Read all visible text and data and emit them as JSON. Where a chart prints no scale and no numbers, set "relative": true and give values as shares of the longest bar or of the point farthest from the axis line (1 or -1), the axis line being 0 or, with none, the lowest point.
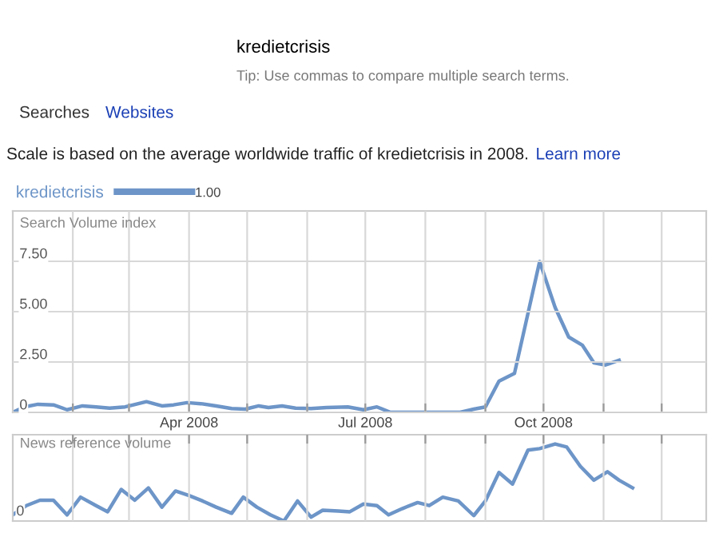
{
  "chart_data": [
    {
      "type": "line",
      "title": "Scale is based on the average worldwide traffic of kredietcrisis in 2008.",
      "ylabel": "Search Volume index",
      "annotations": [
        "kredietcrisis",
        "Tip: Use commas to compare multiple search terms.",
        "Searches",
        "Websites",
        "Learn more",
        "1.00"
      ],
      "x": [
        "2008-01-01",
        "2008-01-07",
        "2008-01-14",
        "2008-01-22",
        "2008-01-29",
        "2008-02-06",
        "2008-02-13",
        "2008-02-20",
        "2008-02-28",
        "2008-03-10",
        "2008-03-18",
        "2008-03-24",
        "2008-03-31",
        "2008-04-07",
        "2008-04-15",
        "2008-04-23",
        "2008-04-30",
        "2008-05-07",
        "2008-05-12",
        "2008-05-19",
        "2008-05-26",
        "2008-06-03",
        "2008-06-11",
        "2008-06-22",
        "2008-06-30",
        "2008-07-07",
        "2008-07-14",
        "2008-07-28",
        "2008-08-19",
        "2008-08-26",
        "2008-09-01",
        "2008-09-08",
        "2008-09-16",
        "2008-09-29",
        "2008-10-07",
        "2008-10-14",
        "2008-10-21",
        "2008-10-27",
        "2008-11-02",
        "2008-11-09"
      ],
      "series": [
        {
          "name": "kredietcrisis",
          "color": "#6d95c8",
          "values": [
            0,
            0.27,
            0.4,
            0.37,
            0.13,
            0.32,
            0.27,
            0.21,
            0.27,
            0.53,
            0.32,
            0.37,
            0.48,
            0.43,
            0.32,
            0.19,
            0.16,
            0.32,
            0.24,
            0.32,
            0.21,
            0.19,
            0.24,
            0.27,
            0.13,
            0.27,
            0,
            0,
            0,
            0.16,
            0.27,
            1.55,
            1.93,
            7.49,
            5.21,
            3.74,
            3.34,
            2.46,
            2.35,
            2.59
          ]
        }
      ],
      "xlim": [
        "2008-01-01",
        "2008-12-24"
      ],
      "xticks": [
        {
          "value": "2008-02-01",
          "label": null
        },
        {
          "value": "2008-03-01",
          "label": null
        },
        {
          "value": "2008-04-01",
          "label": "Apr 2008"
        },
        {
          "value": "2008-05-01",
          "label": null
        },
        {
          "value": "2008-06-01",
          "label": null
        },
        {
          "value": "2008-07-01",
          "label": "Jul 2008"
        },
        {
          "value": "2008-08-01",
          "label": null
        },
        {
          "value": "2008-09-01",
          "label": null
        },
        {
          "value": "2008-10-01",
          "label": "Oct 2008"
        },
        {
          "value": "2008-11-01",
          "label": null
        },
        {
          "value": "2008-12-01",
          "label": null
        }
      ],
      "ylim": [
        0,
        10
      ],
      "yticks": [
        {
          "value": 0,
          "label": "0"
        },
        {
          "value": 2.5,
          "label": "2.50"
        },
        {
          "value": 5,
          "label": "5.00"
        },
        {
          "value": 7.5,
          "label": "7.50"
        }
      ],
      "grid": true,
      "legend": "top left",
      "line_style": "solid",
      "marker": "none"
    },
    {
      "type": "line",
      "ylabel": "News reference volume",
      "relative": true,
      "annotations": [
        "0"
      ],
      "x": [
        "2008-01-01",
        "2008-01-08",
        "2008-01-15",
        "2008-01-22",
        "2008-01-29",
        "2008-02-05",
        "2008-02-13",
        "2008-02-19",
        "2008-02-26",
        "2008-03-04",
        "2008-03-11",
        "2008-03-18",
        "2008-03-25",
        "2008-04-01",
        "2008-04-08",
        "2008-04-15",
        "2008-04-23",
        "2008-04-29",
        "2008-05-06",
        "2008-05-13",
        "2008-05-20",
        "2008-05-27",
        "2008-06-03",
        "2008-06-09",
        "2008-06-17",
        "2008-06-23",
        "2008-06-30",
        "2008-07-07",
        "2008-07-13",
        "2008-07-20",
        "2008-07-28",
        "2008-08-03",
        "2008-08-10",
        "2008-08-18",
        "2008-08-26",
        "2008-09-01",
        "2008-09-08",
        "2008-09-15",
        "2008-09-23",
        "2008-09-29",
        "2008-10-07",
        "2008-10-13",
        "2008-10-20",
        "2008-10-27",
        "2008-11-03",
        "2008-11-09",
        "2008-11-16"
      ],
      "series": [
        {
          "color": "#6d95c8",
          "values": [
            0.08,
            0.2,
            0.27,
            0.27,
            0.08,
            0.31,
            0.2,
            0.12,
            0.41,
            0.27,
            0.43,
            0.18,
            0.39,
            0.33,
            0.26,
            0.18,
            0.1,
            0.31,
            0.18,
            0.08,
            0,
            0.26,
            0.05,
            0.14,
            0.13,
            0.12,
            0.22,
            0.2,
            0.08,
            0.16,
            0.24,
            0.2,
            0.31,
            0.26,
            0.07,
            0.26,
            0.63,
            0.48,
            0.92,
            0.94,
            1,
            0.96,
            0.71,
            0.53,
            0.64,
            0.53,
            0.43
          ]
        }
      ],
      "xlim": [
        "2008-01-01",
        "2008-12-24"
      ],
      "xticks": [
        {
          "value": "2008-02-01",
          "label": null
        },
        {
          "value": "2008-03-01",
          "label": null
        },
        {
          "value": "2008-04-01",
          "label": null
        },
        {
          "value": "2008-05-01",
          "label": null
        },
        {
          "value": "2008-06-01",
          "label": null
        },
        {
          "value": "2008-07-01",
          "label": null
        },
        {
          "value": "2008-08-01",
          "label": null
        },
        {
          "value": "2008-09-01",
          "label": null
        },
        {
          "value": "2008-10-01",
          "label": null
        },
        {
          "value": "2008-11-01",
          "label": null
        },
        {
          "value": "2008-12-01",
          "label": null
        }
      ],
      "tick_labels": false,
      "grid": true,
      "line_style": "solid",
      "marker": "none"
    }
  ]
}
